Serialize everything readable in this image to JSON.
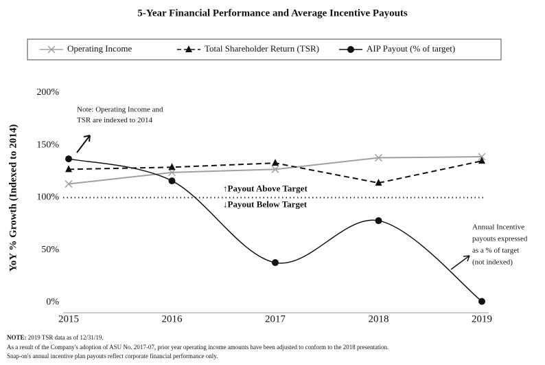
{
  "chart_data": {
    "type": "line",
    "title": "5-Year Financial Performance and Average Incentive Payouts",
    "y_label": "YoY % Growth (Indexed to 2014)",
    "categories": [
      "2015",
      "2016",
      "2017",
      "2018",
      "2019"
    ],
    "series": [
      {
        "name": "Operating Income",
        "color": "#a0a0a0",
        "marker": "x",
        "dash": false,
        "smooth": false,
        "values": [
          113,
          124,
          127,
          138,
          139
        ]
      },
      {
        "name": "Total Shareholder Return (TSR)",
        "color": "#111111",
        "marker": "triangle",
        "dash": true,
        "smooth": false,
        "values": [
          127,
          129,
          133,
          114,
          135
        ]
      },
      {
        "name": "AIP Payout (% of target)",
        "color": "#111111",
        "marker": "circle",
        "dash": false,
        "smooth": true,
        "values": [
          137,
          116,
          38,
          78,
          1
        ]
      }
    ],
    "ylim": [
      0,
      200
    ],
    "yticks": [
      {
        "value": 0,
        "label": "0%"
      },
      {
        "value": 50,
        "label": "50%"
      },
      {
        "value": 100,
        "label": "100%"
      },
      {
        "value": 150,
        "label": "150%"
      },
      {
        "value": 200,
        "label": "200%"
      }
    ],
    "reference_line": 100,
    "reference_labels": [
      "↑Payout Above Target",
      "↓Payout Below Target"
    ],
    "legend": "top",
    "annotations": [
      [
        "Note: Operating Income and",
        "TSR are indexed to 2014"
      ],
      [
        "Annual Incentive",
        "payouts expressed",
        "as a % of target",
        "(not indexed)"
      ]
    ],
    "note_label": "NOTE:",
    "notes": [
      "2019 TSR data as of 12/31/19.",
      "As a result of the Company's adoption of ASU No. 2017-07, prior year operating income amounts have been adjusted to conform to the 2018 presentation.",
      "Snap-on's annual incentive plan payouts reflect corporate financial performance only."
    ]
  }
}
